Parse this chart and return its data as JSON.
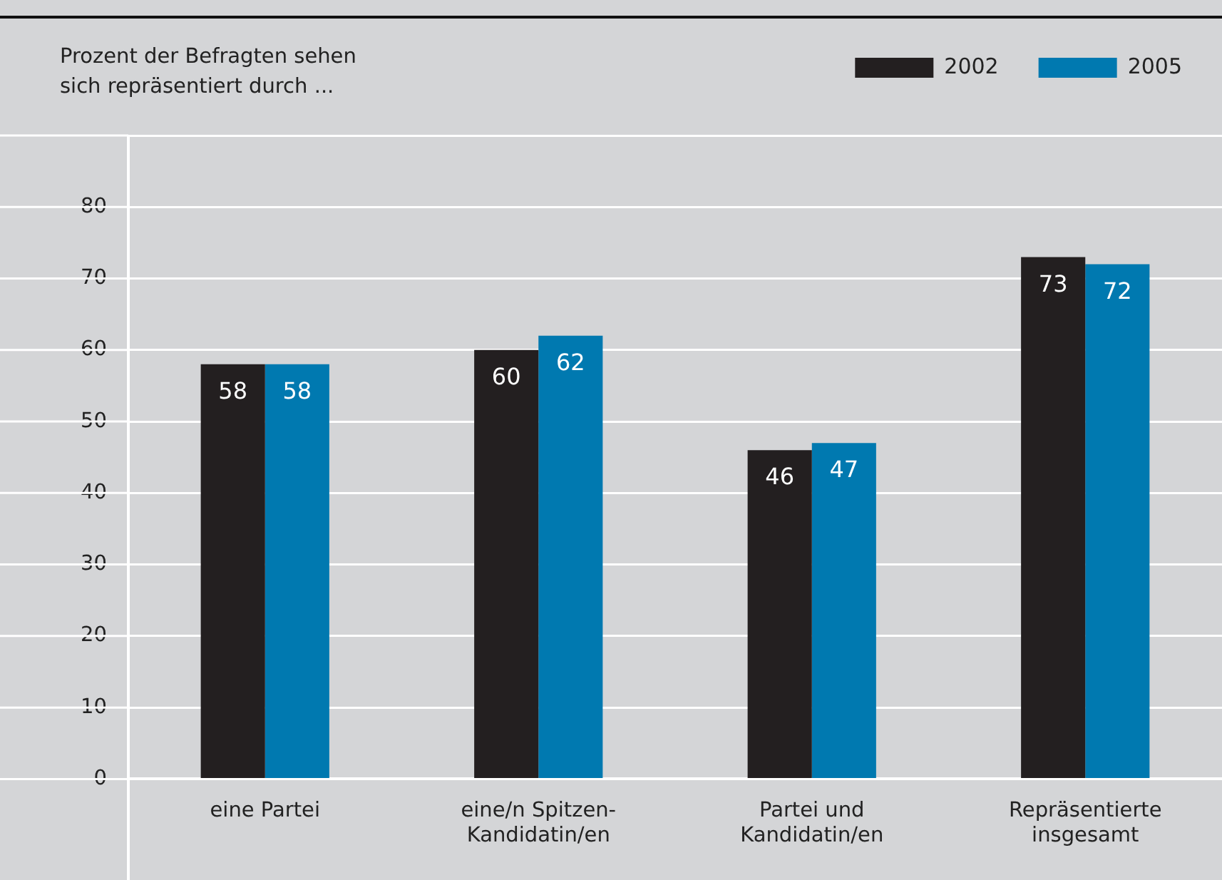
{
  "chart_data": {
    "type": "bar",
    "ylabel": "Prozent der Befragten sehen sich repräsentiert durch ...",
    "categories": [
      "eine Partei",
      "eine/n Spitzen-Kandidatin/en",
      "Partei und Kandidatin/en",
      "Repräsentierte insgesamt"
    ],
    "series": [
      {
        "name": "2002",
        "color": "#231f20",
        "values": [
          58,
          60,
          46,
          73
        ]
      },
      {
        "name": "2005",
        "color": "#0079b0",
        "values": [
          58,
          62,
          47,
          72
        ]
      }
    ],
    "ylim": [
      0,
      90
    ],
    "yticks": [
      0,
      10,
      20,
      30,
      40,
      50,
      60,
      70,
      80,
      {
        "value": 90,
        "label": null
      }
    ],
    "grid": "y",
    "legend": "top right",
    "data_labels": true
  }
}
